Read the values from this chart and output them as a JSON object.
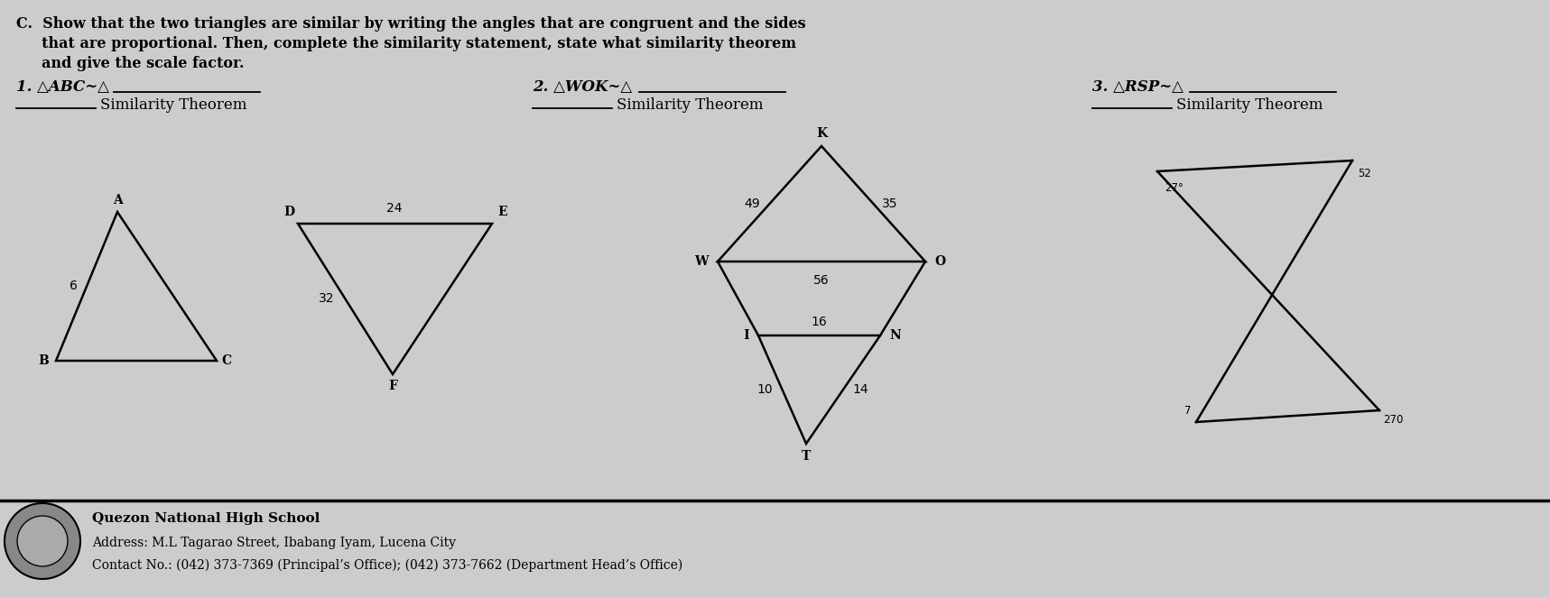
{
  "bg_color": "#cccccc",
  "title_line1": "C.  Show that the two triangles are similar by writing the angles that are congruent and the sides",
  "title_line2": "     that are proportional. Then, complete the similarity statement, state what similarity theorem",
  "title_line3": "     and give the scale factor.",
  "p1_text": "1. △ABC~△",
  "p2_text": "2. △WOK~△",
  "p3_text": "3. △RSP~△",
  "sim_theorem": "Similarity Theorem",
  "footer_line1": "Quezon National High School",
  "footer_line2": "Address: M.L Tagarao Street, Ibabang Iyam, Lucena City",
  "footer_line3": "Contact No.: (042) 373-7369 (Principal’s Office); (042) 373-7662 (Department Head’s Office)"
}
